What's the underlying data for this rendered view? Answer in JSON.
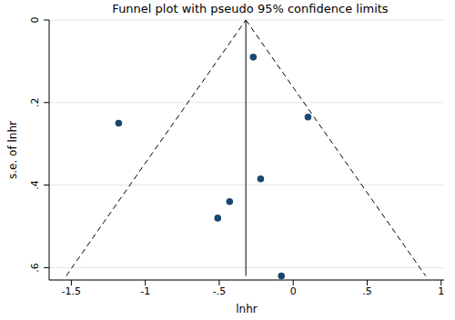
{
  "chart_data": {
    "type": "scatter",
    "title": "Funnel plot with pseudo 95% confidence limits",
    "x_label": "lnhr",
    "y_label": "s.e. of lnhr",
    "x": [
      -0.27,
      0.1,
      -1.18,
      -0.22,
      -0.43,
      -0.51,
      -0.08
    ],
    "values": [
      0.09,
      0.235,
      0.25,
      0.385,
      0.44,
      0.48,
      0.62
    ],
    "color": "#1a476f",
    "xlim": [
      -1.65,
      1.02
    ],
    "xticks": [
      {
        "value": -1.5,
        "label": "-1.5"
      },
      -1,
      {
        "value": -0.5,
        "label": "-.5"
      },
      0,
      {
        "value": 0.5,
        "label": ".5"
      },
      1
    ],
    "ylim": [
      0,
      0.63
    ],
    "yticks": [
      0,
      {
        "value": 0.2,
        "label": ".2"
      },
      {
        "value": 0.4,
        "label": ".4"
      },
      {
        "value": 0.6,
        "label": ".6"
      }
    ],
    "grid": true,
    "funnel": {
      "apex": [
        -0.32,
        0
      ],
      "left_end": [
        -1.535,
        0.62
      ],
      "right_end": [
        0.895,
        0.62
      ]
    }
  }
}
